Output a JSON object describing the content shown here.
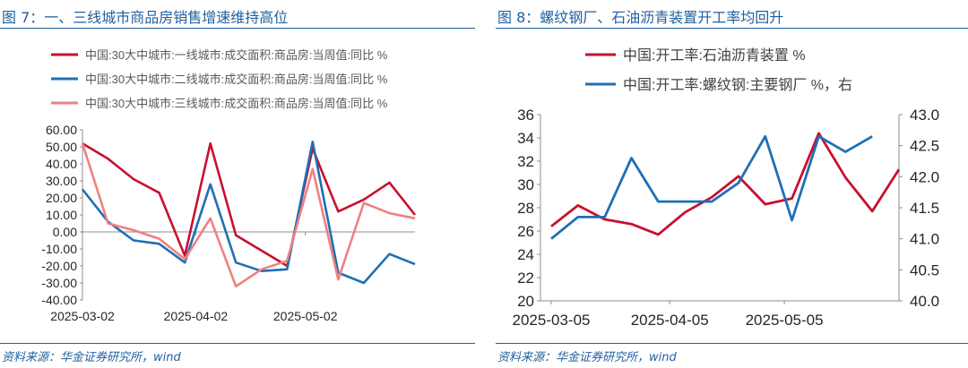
{
  "chart_data": [
    {
      "type": "line",
      "title": "图 7：一、三线城市商品房销售增速维持高位",
      "source": "资料来源：华金证券研究所，wind",
      "x": [
        "2025-03-02",
        "2025-03-09",
        "2025-03-16",
        "2025-03-23",
        "2025-03-30",
        "2025-04-06",
        "2025-04-13",
        "2025-04-20",
        "2025-04-27",
        "2025-05-04",
        "2025-05-11",
        "2025-05-18",
        "2025-05-25",
        "2025-06-01"
      ],
      "x_ticks": [
        "2025-03-02",
        "2025-04-02",
        "2025-05-02"
      ],
      "ylim": [
        -40,
        60
      ],
      "yticks": [
        "60.00",
        "50.00",
        "40.00",
        "30.00",
        "20.00",
        "10.00",
        "0.00",
        "-10.00",
        "-20.00",
        "-30.00",
        "-40.00"
      ],
      "grid": false,
      "legend_position": "top",
      "series": [
        {
          "name": "中国:30大中城市:一线城市:成交面积:商品房:当周值:同比 %",
          "color": "#c8102e",
          "values": [
            52,
            43,
            31,
            23,
            -14,
            52,
            -2,
            -11,
            -20,
            49,
            12,
            19,
            29,
            10
          ]
        },
        {
          "name": "中国:30大中城市:二线城市:成交面积:商品房:当周值:同比 %",
          "color": "#1f6fb5",
          "values": [
            25,
            6,
            -5,
            -7,
            -18,
            28,
            -18,
            -23,
            -22,
            53,
            -24,
            -30,
            -13,
            -19
          ]
        },
        {
          "name": "中国:30大中城市:三线城市:成交面积:商品房:当周值:同比 %",
          "color": "#f08080",
          "values": [
            52,
            5,
            1,
            -4,
            -16,
            8,
            -32,
            -22,
            -17,
            37,
            -28,
            17,
            11,
            8
          ]
        }
      ]
    },
    {
      "type": "line",
      "title": "图 8：螺纹钢厂、石油沥青装置开工率均回升",
      "source": "资料来源：华金证券研究所，wind",
      "x": [
        "2025-03-05",
        "2025-03-12",
        "2025-03-19",
        "2025-03-26",
        "2025-04-02",
        "2025-04-09",
        "2025-04-16",
        "2025-04-23",
        "2025-04-30",
        "2025-05-07",
        "2025-05-14",
        "2025-05-21",
        "2025-05-28",
        "2025-06-04"
      ],
      "x_ticks": [
        "2025-03-05",
        "2025-04-05",
        "2025-05-05"
      ],
      "ylim": [
        20,
        36
      ],
      "yticks": [
        "36",
        "34",
        "32",
        "30",
        "28",
        "26",
        "24",
        "22",
        "20"
      ],
      "y2lim": [
        40.0,
        43.0
      ],
      "y2ticks": [
        "43.0",
        "42.5",
        "42.0",
        "41.5",
        "41.0",
        "40.5",
        "40.0"
      ],
      "grid": false,
      "legend_position": "top",
      "series": [
        {
          "name": "中国:开工率:石油沥青装置 %",
          "color": "#c8102e",
          "axis": "left",
          "values": [
            26.4,
            28.2,
            27.0,
            26.6,
            25.7,
            27.6,
            28.9,
            30.7,
            28.3,
            28.8,
            34.4,
            30.6,
            27.7,
            31.3
          ]
        },
        {
          "name": "中国:开工率:螺纹钢:主要钢厂 %，右",
          "color": "#1f6fb5",
          "axis": "right",
          "values": [
            41.0,
            41.35,
            41.35,
            42.3,
            41.6,
            41.6,
            41.6,
            41.9,
            42.65,
            41.3,
            42.65,
            42.4,
            42.65,
            null
          ]
        }
      ]
    }
  ]
}
